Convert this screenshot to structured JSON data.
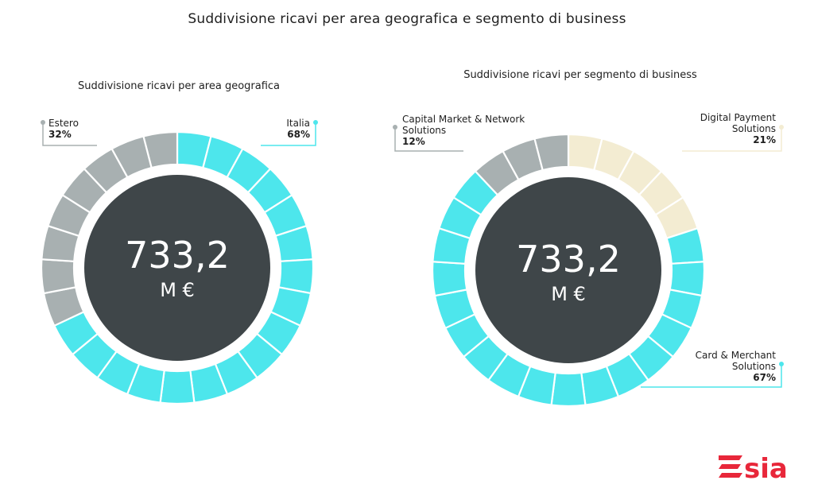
{
  "title": "Suddivisione ricavi per area geografica e segmento di business",
  "colors": {
    "cyan": "#4de6ec",
    "gray": "#a8b0b1",
    "cream": "#f3ecd2",
    "center": "#3f4649",
    "logo_red": "#e8273a"
  },
  "chart_data": [
    {
      "type": "pie",
      "title": "Suddivisione ricavi per area geografica",
      "center_value": "733,2",
      "center_unit": "M €",
      "slices": [
        {
          "label": "Italia",
          "value": 68,
          "value_label": "68%",
          "color": "#4de6ec"
        },
        {
          "label": "Estero",
          "value": 32,
          "value_label": "32%",
          "color": "#a8b0b1"
        }
      ]
    },
    {
      "type": "pie",
      "title": "Suddivisione ricavi per segmento di business",
      "center_value": "733,2",
      "center_unit": "M €",
      "slices": [
        {
          "label": "Digital Payment Solutions",
          "value": 21,
          "value_label": "21%",
          "color": "#f3ecd2"
        },
        {
          "label": "Card & Merchant Solutions",
          "value": 67,
          "value_label": "67%",
          "color": "#4de6ec"
        },
        {
          "label": "Capital Market & Network Solutions",
          "value": 12,
          "value_label": "12%",
          "color": "#a8b0b1"
        }
      ]
    }
  ],
  "labels": {
    "left": {
      "estero": {
        "line1": "Estero",
        "pct": "32%"
      },
      "italia": {
        "line1": "Italia",
        "pct": "68%"
      }
    },
    "right": {
      "capital": {
        "line1": "Capital Market & Network",
        "line2": "Solutions",
        "pct": "12%"
      },
      "digital": {
        "line1": "Digital Payment",
        "line2": "Solutions",
        "pct": "21%"
      },
      "card": {
        "line1": "Card & Merchant",
        "line2": "Solutions",
        "pct": "67%"
      }
    }
  },
  "logo": {
    "text": "SIA"
  }
}
